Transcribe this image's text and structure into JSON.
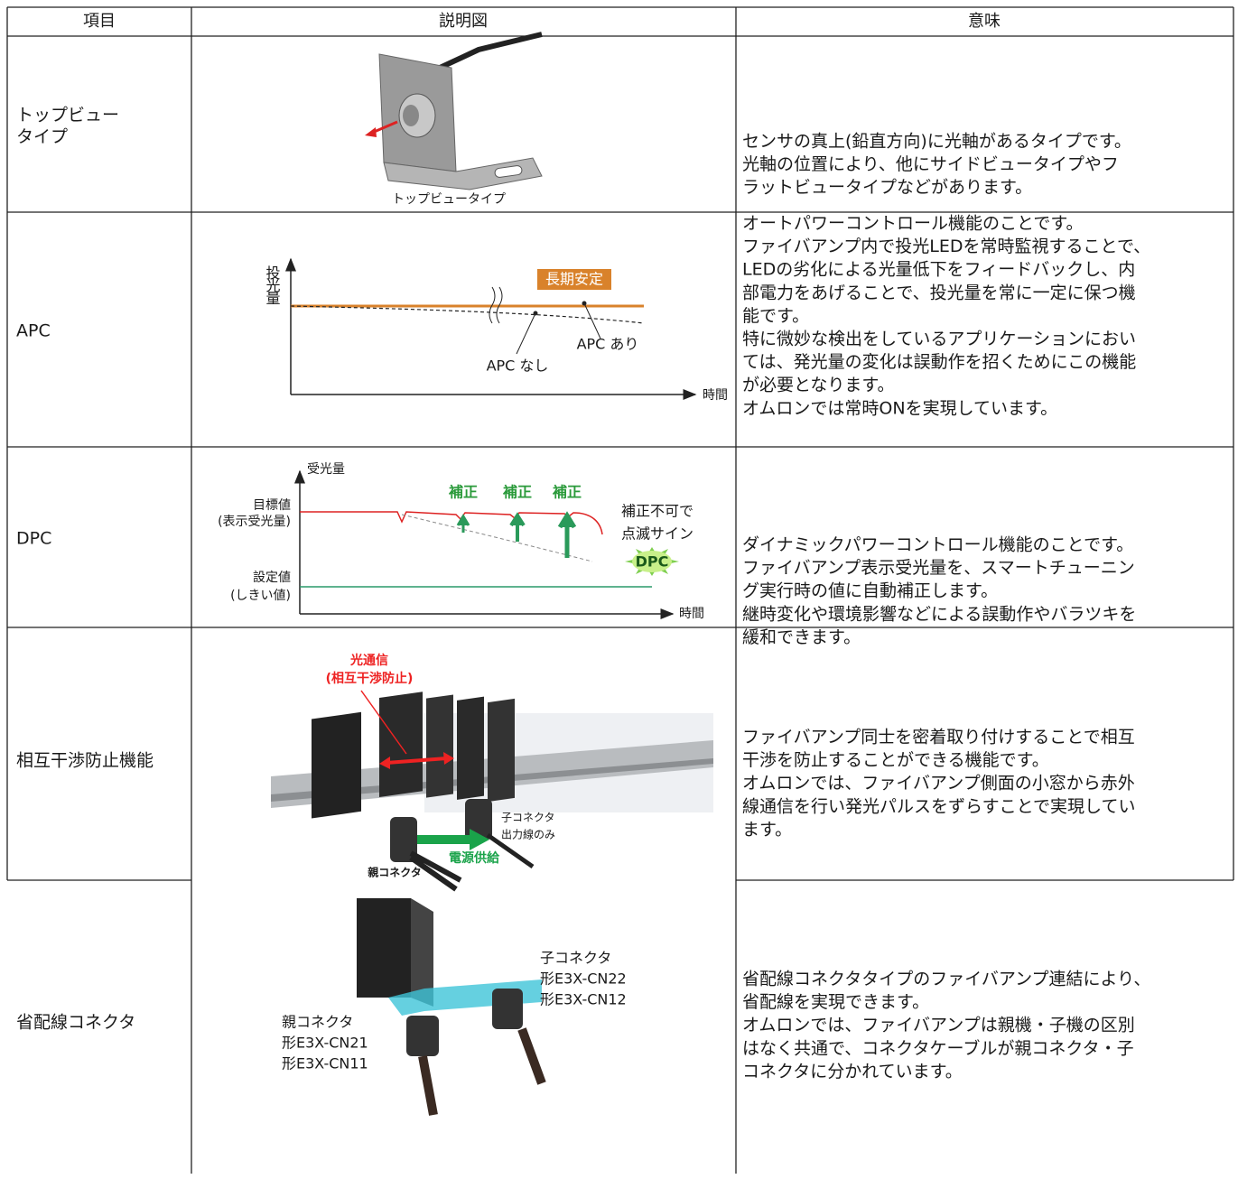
{
  "table": {
    "header": [
      "項目",
      "説明図",
      "意味"
    ],
    "rows": [
      {
        "item": [
          "トップビュー",
          "タイプ"
        ],
        "figure": {
          "caption": "トップビュータイプ"
        },
        "meaning": [
          "センサの真上(鉛直方向)に光軸があるタイプです。",
          "光軸の位置により、他にサイドビュータイプやフ",
          "ラットビュータイプなどがあります。"
        ]
      },
      {
        "item": [
          "APC"
        ],
        "figure": {
          "y_label": "投光量",
          "stable": "長期安定",
          "with_apc": "APC あり",
          "without_apc": "APC なし",
          "x_label": "時間"
        },
        "meaning": [
          "オートパワーコントロール機能のことです。",
          "ファイバアンプ内で投光LEDを常時監視することで、",
          "LEDの劣化による光量低下をフィードバックし、内",
          "部電力をあげることで、投光量を常に一定に保つ機",
          "能です。",
          "特に微妙な検出をしているアプリケーションにおい",
          "ては、発光量の変化は誤動作を招くためにこの機能",
          "が必要となります。",
          "オムロンでは常時ONを実現しています。"
        ]
      },
      {
        "item": [
          "DPC"
        ],
        "figure": {
          "y_label": "受光量",
          "target": "目標値",
          "target_note": "(表示受光量)",
          "corrections": [
            "補正",
            "補正",
            "補正"
          ],
          "fail_1": "補正不可で",
          "fail_2": "点滅サイン",
          "badge": "DPC",
          "threshold": "設定値",
          "threshold_note": "(しきい値)",
          "x_label": "時間"
        },
        "meaning": [
          "ダイナミックパワーコントロール機能のことです。",
          "ファイバアンプ表示受光量を、スマートチューニン",
          "グ実行時の値に自動補正します。",
          "継時変化や環境影響などによる誤動作やバラツキを",
          "緩和できます。"
        ]
      },
      {
        "item": [
          "相互干渉防止機能"
        ],
        "figure": {
          "comm_1": "光通信",
          "comm_2": "(相互干渉防止)",
          "child_1": "子コネクタ",
          "child_2": "出力線のみ",
          "power": "電源供給",
          "parent": "親コネクタ"
        },
        "meaning": [
          "ファイバアンプ同士を密着取り付けすることで相互",
          "干渉を防止することができる機能です。",
          "オムロンでは、ファイバアンプ側面の小窓から赤外",
          "線通信を行い発光パルスをずらすことで実現してい",
          "ます。"
        ]
      },
      {
        "item": [
          "省配線コネクタ"
        ],
        "figure": {
          "child": [
            "子コネクタ",
            "形E3X-CN22",
            "形E3X-CN12"
          ],
          "parent": [
            "親コネクタ",
            "形E3X-CN21",
            "形E3X-CN11"
          ]
        },
        "meaning": [
          "省配線コネクタタイプのファイバアンプ連結により、",
          "省配線を実現できます。",
          "オムロンでは、ファイバアンプは親機・子機の区別",
          "はなく共通で、コネクタケーブルが親コネクタ・子",
          "コネクタに分かれています。"
        ]
      }
    ]
  }
}
